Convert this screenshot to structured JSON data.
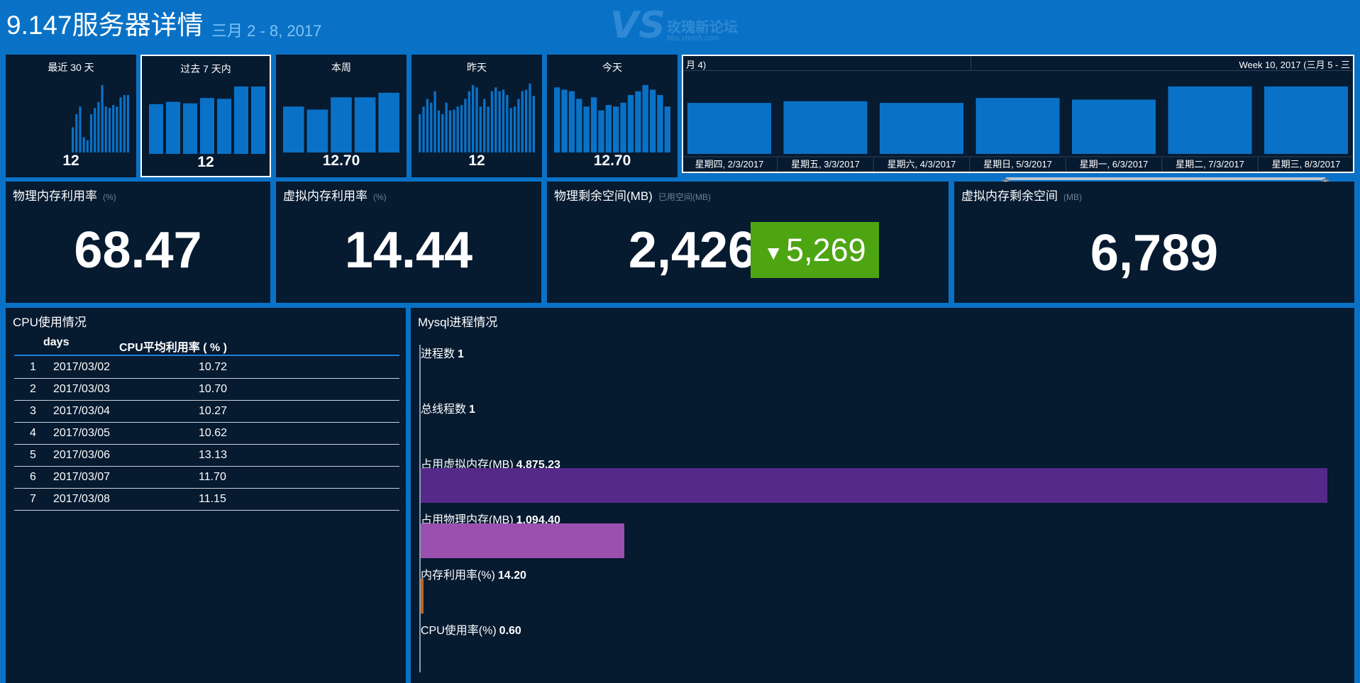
{
  "header": {
    "title": "9.147服务器详情",
    "subtitle": "三月 2 - 8, 2017"
  },
  "watermark": {
    "logo": "VS",
    "text": "玫瑰新论坛",
    "url": "bbs.vtion5.com"
  },
  "tiles": [
    {
      "label": "最近 30 天",
      "value": "12",
      "selected": false,
      "bars": [
        0,
        0,
        0,
        0,
        0,
        0,
        0,
        0,
        0,
        0,
        0,
        0,
        0,
        0,
        0,
        0,
        0.33,
        0.5,
        0.6,
        0.2,
        0.16,
        0.5,
        0.58,
        0.66,
        0.88,
        0.6,
        0.58,
        0.62,
        0.6,
        0.72,
        0.75,
        0.75
      ]
    },
    {
      "label": "过去 7 天内",
      "value": "12",
      "selected": true,
      "bars": [
        0.65,
        0.68,
        0.66,
        0.73,
        0.72,
        0.88,
        0.88
      ]
    },
    {
      "label": "本周",
      "value": "12.70",
      "selected": false,
      "bars": [
        0.6,
        0.56,
        0.72,
        0.72,
        0.78
      ]
    },
    {
      "label": "昨天",
      "value": "12",
      "selected": false,
      "bars": [
        0.5,
        0.6,
        0.7,
        0.65,
        0.8,
        0.55,
        0.5,
        0.65,
        0.55,
        0.56,
        0.6,
        0.62,
        0.7,
        0.8,
        0.88,
        0.85,
        0.6,
        0.7,
        0.6,
        0.8,
        0.85,
        0.8,
        0.82,
        0.75,
        0.58,
        0.6,
        0.7,
        0.8,
        0.82,
        0.9,
        0.74
      ]
    },
    {
      "label": "今天",
      "value": "12.70",
      "selected": false,
      "bars": [
        0.85,
        0.82,
        0.8,
        0.7,
        0.6,
        0.72,
        0.55,
        0.62,
        0.6,
        0.65,
        0.75,
        0.8,
        0.88,
        0.82,
        0.75,
        0.6
      ]
    }
  ],
  "week_chart": {
    "left_label": "月 4)",
    "right_label": "Week 10, 2017 (三月 5 - 三",
    "days": [
      {
        "label": "星期四, 2/3/2017",
        "value": 0.62
      },
      {
        "label": "星期五, 3/3/2017",
        "value": 0.64
      },
      {
        "label": "星期六, 4/3/2017",
        "value": 0.62
      },
      {
        "label": "星期日, 5/3/2017",
        "value": 0.68
      },
      {
        "label": "星期一, 6/3/2017",
        "value": 0.66
      },
      {
        "label": "星期二, 7/3/2017",
        "value": 0.82
      },
      {
        "label": "星期三, 8/3/2017",
        "value": 0.82
      }
    ]
  },
  "kpis": {
    "phys_mem_rate": {
      "label": "物理内存利用率",
      "unit": "(%)",
      "value": "68.47"
    },
    "virt_mem_rate": {
      "label": "虚拟内存利用率",
      "unit": "(%)",
      "value": "14.44"
    },
    "phys_free": {
      "label": "物理剩余空间(MB)",
      "unit": "已用空间(MB)",
      "value": "2,426",
      "delta": "5,269",
      "delta_arrow": "▼",
      "delta_color": "#4ea512"
    },
    "virt_free": {
      "label": "虚拟内存剩余空间",
      "unit": "(MB)",
      "value": "6,789"
    }
  },
  "cpu_table": {
    "title": "CPU使用情况",
    "columns": [
      "days",
      "CPU平均利用率 ( % )"
    ],
    "rows": [
      {
        "idx": "1",
        "day": "2017/03/02",
        "value": "10.72"
      },
      {
        "idx": "2",
        "day": "2017/03/03",
        "value": "10.70"
      },
      {
        "idx": "3",
        "day": "2017/03/04",
        "value": "10.27"
      },
      {
        "idx": "4",
        "day": "2017/03/05",
        "value": "10.62"
      },
      {
        "idx": "5",
        "day": "2017/03/06",
        "value": "13.13"
      },
      {
        "idx": "6",
        "day": "2017/03/07",
        "value": "11.70"
      },
      {
        "idx": "7",
        "day": "2017/03/08",
        "value": "11.15"
      }
    ]
  },
  "mysql": {
    "title": "Mysql进程情况",
    "max_value": 4875.23,
    "items": [
      {
        "label": "进程数",
        "value": "1",
        "num": 1,
        "color": "#4a90d9"
      },
      {
        "label": "总线程数",
        "value": "1",
        "num": 1,
        "color": "#4a90d9"
      },
      {
        "label": "占用虚拟内存(MB)",
        "value": "4,875.23",
        "num": 4875.23,
        "color": "#55298a"
      },
      {
        "label": "占用物理内存(MB)",
        "value": "1,094.40",
        "num": 1094.4,
        "color": "#9b50b0"
      },
      {
        "label": "内存利用率(%)",
        "value": "14.20",
        "num": 14.2,
        "color": "#c0641a"
      },
      {
        "label": "CPU使用率(%)",
        "value": "0.60",
        "num": 0.6,
        "color": "#4a90d9"
      }
    ]
  },
  "colors": {
    "background": "#0a72c6",
    "panel": "#061a30",
    "bar": "#0a72c6",
    "accent_green": "#4ea512"
  }
}
